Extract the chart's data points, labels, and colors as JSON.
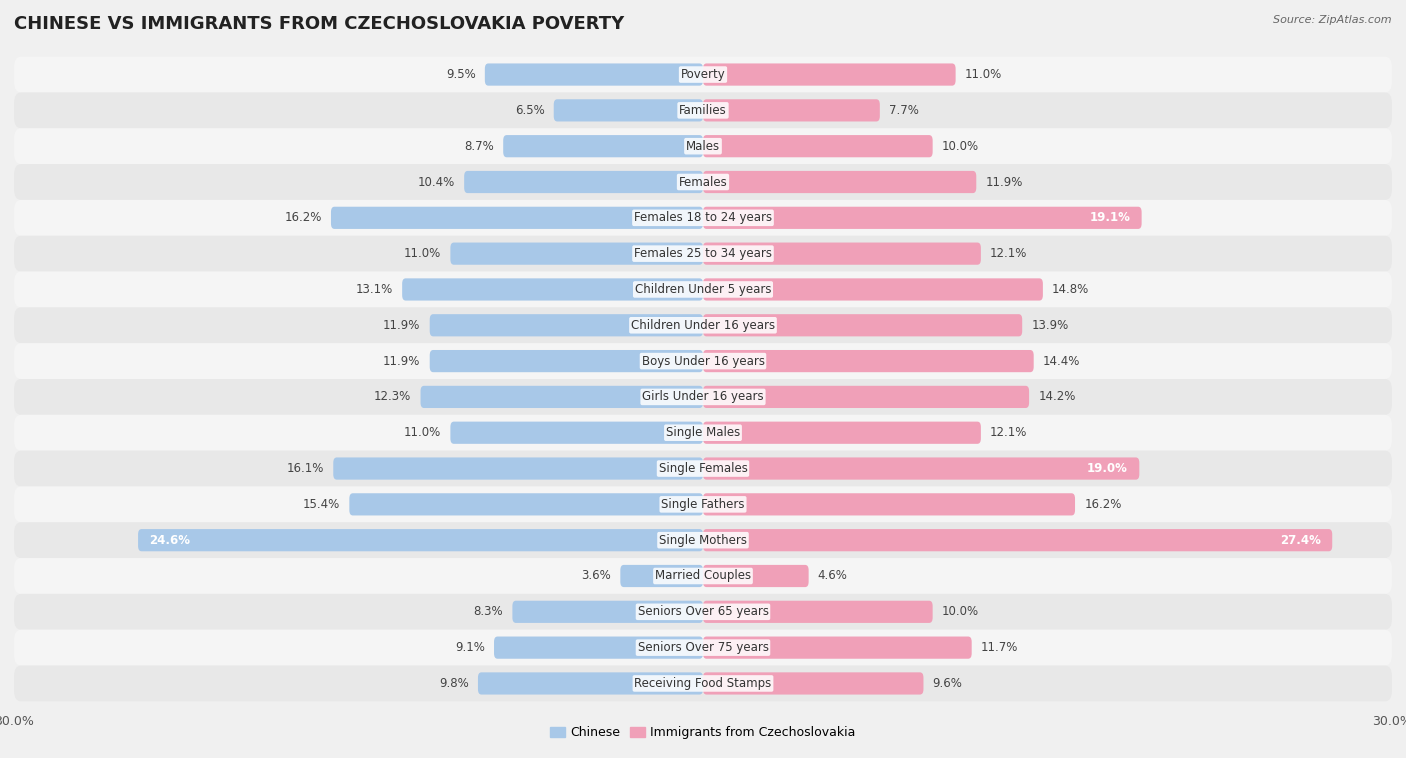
{
  "title": "CHINESE VS IMMIGRANTS FROM CZECHOSLOVAKIA POVERTY",
  "source": "Source: ZipAtlas.com",
  "categories": [
    "Poverty",
    "Families",
    "Males",
    "Females",
    "Females 18 to 24 years",
    "Females 25 to 34 years",
    "Children Under 5 years",
    "Children Under 16 years",
    "Boys Under 16 years",
    "Girls Under 16 years",
    "Single Males",
    "Single Females",
    "Single Fathers",
    "Single Mothers",
    "Married Couples",
    "Seniors Over 65 years",
    "Seniors Over 75 years",
    "Receiving Food Stamps"
  ],
  "chinese": [
    9.5,
    6.5,
    8.7,
    10.4,
    16.2,
    11.0,
    13.1,
    11.9,
    11.9,
    12.3,
    11.0,
    16.1,
    15.4,
    24.6,
    3.6,
    8.3,
    9.1,
    9.8
  ],
  "czechoslovakia": [
    11.0,
    7.7,
    10.0,
    11.9,
    19.1,
    12.1,
    14.8,
    13.9,
    14.4,
    14.2,
    12.1,
    19.0,
    16.2,
    27.4,
    4.6,
    10.0,
    11.7,
    9.6
  ],
  "chinese_color": "#a8c8e8",
  "czechoslovakia_color": "#f0a0b8",
  "row_bg_light": "#f5f5f5",
  "row_bg_dark": "#e8e8e8",
  "background_color": "#f0f0f0",
  "bar_height": 0.62,
  "xlim_half": 30,
  "legend_label_left": "Chinese",
  "legend_label_right": "Immigrants from Czechoslovakia",
  "title_fontsize": 13,
  "source_fontsize": 8,
  "label_fontsize": 8.5,
  "value_fontsize": 8.5,
  "inside_label_threshold": 17.0
}
